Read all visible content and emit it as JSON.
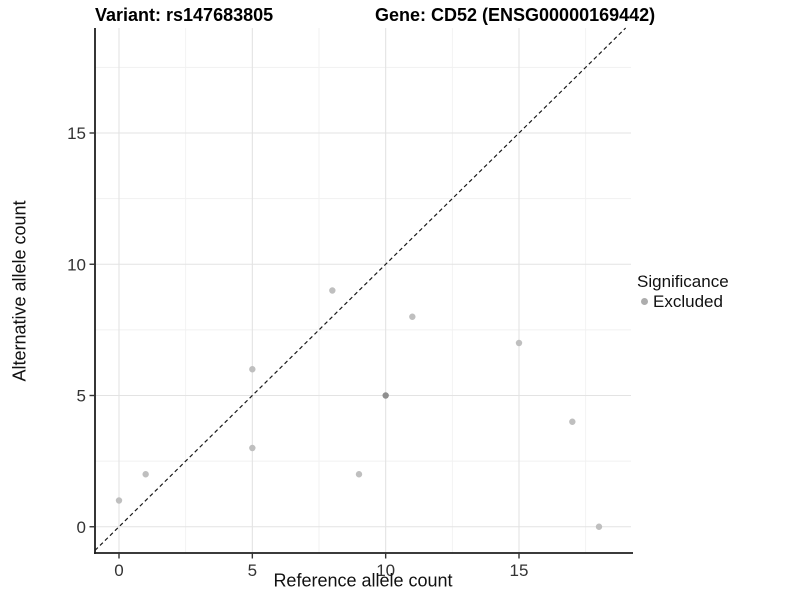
{
  "chart_data": {
    "type": "scatter",
    "title_left": "Variant: rs147683805",
    "title_right": "Gene: CD52 (ENSG00000169442)",
    "xlabel": "Reference allele count",
    "ylabel": "Alternative allele count",
    "xlim": [
      -0.9,
      19.2
    ],
    "ylim": [
      -1.0,
      19.0
    ],
    "x_major_ticks": [
      0,
      5,
      10,
      15
    ],
    "y_major_ticks": [
      0,
      5,
      10,
      15
    ],
    "x_minor_ticks": [
      2.5,
      7.5,
      12.5,
      17.5
    ],
    "y_minor_ticks": [
      2.5,
      7.5,
      12.5,
      17.5
    ],
    "grid": "on",
    "identity_line": {
      "from": -0.9,
      "to": 19.0,
      "style": "dashed",
      "color": "#1a1a1a"
    },
    "series": [
      {
        "name": "Excluded",
        "points": [
          {
            "x": 0,
            "y": 1
          },
          {
            "x": 1,
            "y": 2
          },
          {
            "x": 5,
            "y": 3
          },
          {
            "x": 5,
            "y": 6
          },
          {
            "x": 8,
            "y": 9
          },
          {
            "x": 9,
            "y": 2
          },
          {
            "x": 10,
            "y": 5,
            "shade": "dark"
          },
          {
            "x": 11,
            "y": 8
          },
          {
            "x": 15,
            "y": 7
          },
          {
            "x": 17,
            "y": 4
          },
          {
            "x": 18,
            "y": 0
          }
        ]
      }
    ],
    "legend": {
      "position": "right",
      "title": "Significance",
      "items": [
        {
          "label": "Excluded",
          "color": "#adadad"
        }
      ]
    },
    "colors": {
      "point": "#bfbfbf",
      "point_dark": "#8f8f8f",
      "grid_major": "#e3e3e3",
      "grid_minor": "#f1f1f1",
      "axis_line": "#1f1f1f",
      "tick_text": "#333333"
    }
  }
}
